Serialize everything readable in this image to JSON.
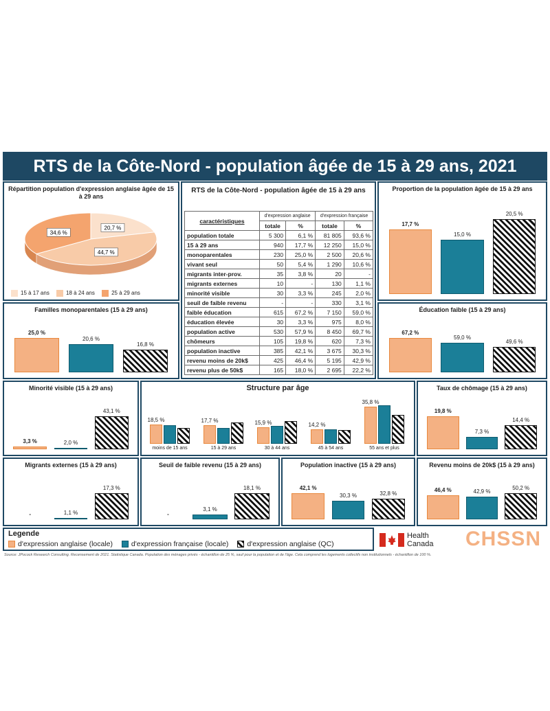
{
  "header": {
    "title": "RTS de la Côte-Nord - population âgée de 15 à 29 ans, 2021"
  },
  "colors": {
    "orange": "#f4b183",
    "teal": "#1b7f98",
    "navy": "#1e4863",
    "pie_light": "#fbe1cc",
    "pie_mid": "#f8cba8",
    "pie_dark": "#f4a46e"
  },
  "pie": {
    "title": "Répartition population d'expression anglaise âgée de 15 à 29 ans",
    "slices": [
      {
        "label": "15 à 17 ans",
        "value": 20.7,
        "text": "20,7 %"
      },
      {
        "label": "18 à 24 ans",
        "value": 44.7,
        "text": "44,7 %"
      },
      {
        "label": "25 à 29 ans",
        "value": 34.6,
        "text": "34,6 %"
      }
    ]
  },
  "table": {
    "title": "RTS de la Côte-Nord - population âgée de 15 à 29 ans",
    "col_header": "caractéristiques",
    "group_en": "d'expression anglaise",
    "group_fr": "d'expression française",
    "sub": [
      "totale",
      "%",
      "totale",
      "%"
    ],
    "rows": [
      [
        "population totale",
        "5 300",
        "6,1 %",
        "81 805",
        "93,6 %"
      ],
      [
        "15 à 29 ans",
        "940",
        "17,7 %",
        "12 250",
        "15,0 %"
      ],
      [
        "monoparentales",
        "230",
        "25,0 %",
        "2 500",
        "20,6 %"
      ],
      [
        "vivant seul",
        "50",
        "5,4 %",
        "1 290",
        "10,6 %"
      ],
      [
        "migrants inter-prov.",
        "35",
        "3,8 %",
        "20",
        "-"
      ],
      [
        "migrants externes",
        "10",
        "-",
        "130",
        "1,1 %"
      ],
      [
        "minorité visible",
        "30",
        "3,3 %",
        "245",
        "2,0 %"
      ],
      [
        "seuil de faible revenu",
        "-",
        "-",
        "330",
        "3,1 %"
      ],
      [
        "faible éducation",
        "615",
        "67,2 %",
        "7 150",
        "59,0 %"
      ],
      [
        "éducation élevée",
        "30",
        "3,3 %",
        "975",
        "8,0 %"
      ],
      [
        "population active",
        "530",
        "57,9 %",
        "8 450",
        "69,7 %"
      ],
      [
        "chômeurs",
        "105",
        "19,8 %",
        "620",
        "7,3 %"
      ],
      [
        "population inactive",
        "385",
        "42,1 %",
        "3 675",
        "30,3 %"
      ],
      [
        "revenu moins de 20k$",
        "425",
        "46,4 %",
        "5 195",
        "42,9 %"
      ],
      [
        "revenu plus de 50k$",
        "165",
        "18,0 %",
        "2 695",
        "22,2 %"
      ]
    ]
  },
  "chart_data": [
    {
      "id": "proportion",
      "type": "bar",
      "title": "Proportion de la population âgée de 15 à 29 ans",
      "values": [
        17.7,
        15.0,
        20.5
      ],
      "labels": [
        "17,7 %",
        "15,0 %",
        "20,5 %"
      ]
    },
    {
      "id": "monoparentales",
      "type": "bar",
      "title": "Familles monoparentales (15 à 29 ans)",
      "values": [
        25.0,
        20.6,
        16.8
      ],
      "labels": [
        "25,0 %",
        "20,6 %",
        "16,8 %"
      ]
    },
    {
      "id": "education",
      "type": "bar",
      "title": "Éducation faible (15 à 29 ans)",
      "values": [
        67.2,
        59.0,
        49.6
      ],
      "labels": [
        "67,2 %",
        "59,0 %",
        "49,6 %"
      ]
    },
    {
      "id": "minorite",
      "type": "bar",
      "title": "Minorité visible (15 à 29 ans)",
      "values": [
        3.3,
        2.0,
        43.1
      ],
      "labels": [
        "3,3 %",
        "2,0 %",
        "43,1 %"
      ]
    },
    {
      "id": "structure",
      "type": "bar",
      "title": "Structure par âge",
      "categories": [
        "moins de 15 ans",
        "15 à 29 ans",
        "30 à 44 ans",
        "45 à 54 ans",
        "55 ans et plus"
      ],
      "series": [
        {
          "name": "d'expression anglaise (locale)",
          "values": [
            18.5,
            17.7,
            15.9,
            14.2,
            35.8
          ]
        },
        {
          "name": "d'expression française (locale)",
          "values": [
            18.0,
            15.0,
            17.0,
            14.0,
            37.0
          ]
        },
        {
          "name": "d'expression anglaise (QC)",
          "values": [
            15.0,
            20.5,
            22.0,
            13.0,
            28.0
          ]
        }
      ],
      "labels": [
        "18,5 %",
        "17,7 %",
        "15,9 %",
        "14,2 %",
        "35,8 %"
      ]
    },
    {
      "id": "chomage",
      "type": "bar",
      "title": "Taux de chômage (15 à 29 ans)",
      "values": [
        19.8,
        7.3,
        14.4
      ],
      "labels": [
        "19,8 %",
        "7,3 %",
        "14,4 %"
      ]
    },
    {
      "id": "migrants",
      "type": "bar",
      "title": "Migrants externes (15 à 29 ans)",
      "values": [
        0,
        1.1,
        17.3
      ],
      "labels": [
        "-",
        "1,1 %",
        "17,3 %"
      ]
    },
    {
      "id": "seuil",
      "type": "bar",
      "title": "Seuil de faible revenu (15 à 29 ans)",
      "values": [
        0,
        3.1,
        18.1
      ],
      "labels": [
        "-",
        "3,1 %",
        "18,1 %"
      ]
    },
    {
      "id": "inactive",
      "type": "bar",
      "title": "Population inactive (15 à 29 ans)",
      "values": [
        42.1,
        30.3,
        32.8
      ],
      "labels": [
        "42,1 %",
        "30,3 %",
        "32,8 %"
      ]
    },
    {
      "id": "revenu",
      "type": "bar",
      "title": "Revenu moins de 20k$ (15 à 29 ans)",
      "values": [
        46.4,
        42.9,
        50.2
      ],
      "labels": [
        "46,4 %",
        "42,9 %",
        "50,2 %"
      ]
    }
  ],
  "legend": {
    "title": "Legende",
    "items": [
      "d'expression anglaise (locale)",
      "d'expression française (locale)",
      "d'expression anglaise (QC)"
    ]
  },
  "logos": {
    "health_line1": "Health",
    "health_line2": "Canada",
    "chssn": "CHSSN"
  },
  "source": "Source: JPocock Research Consulting. Recensement de 2021. Statistique Canada. Population des ménages privés - échantillon de 25 %, sauf pour la population et de l'âge. Cela comprend les logements collectifs non institutionnels - échantillon de 100 %."
}
